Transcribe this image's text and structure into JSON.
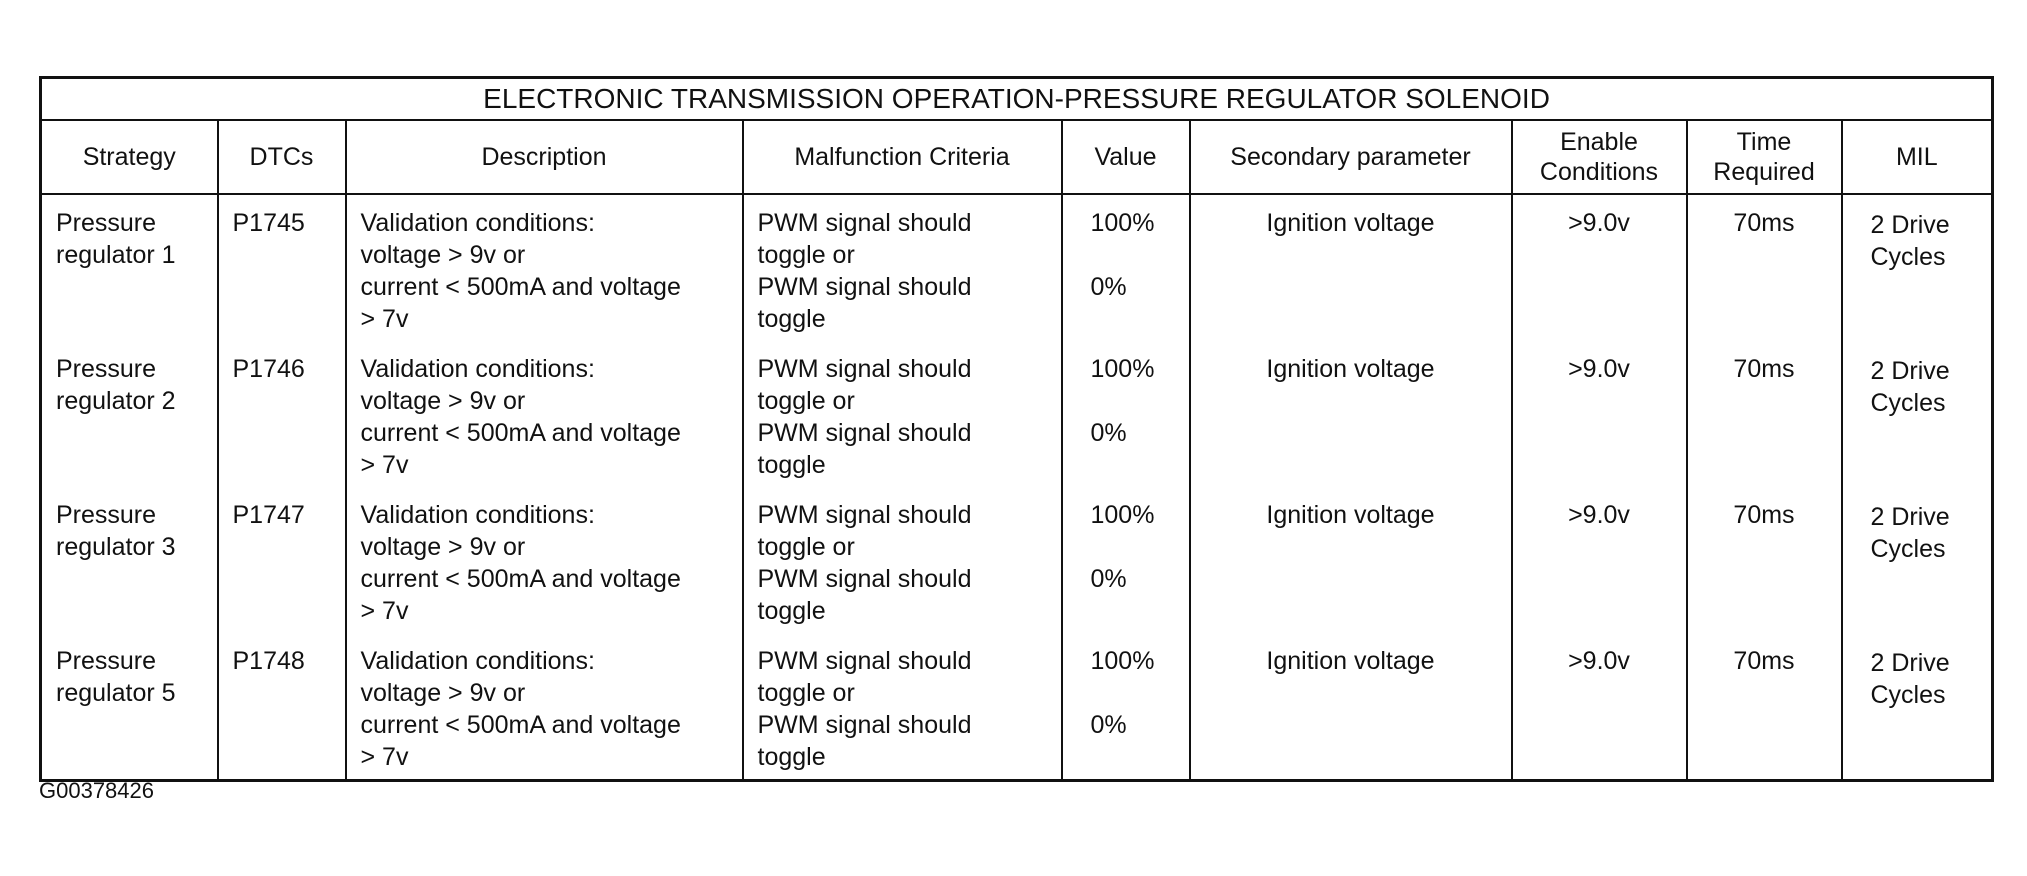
{
  "table": {
    "title": "ELECTRONIC TRANSMISSION OPERATION-PRESSURE REGULATOR SOLENOID",
    "headers": [
      "Strategy",
      "DTCs",
      "Description",
      "Malfunction Criteria",
      "Value",
      "Secondary parameter",
      "Enable\nConditions",
      "Time\nRequired",
      "MIL"
    ],
    "rows": [
      {
        "strategy": "Pressure\nregulator 1",
        "dtc": "P1745",
        "items": [
          {
            "description": "Validation conditions:\nvoltage > 9v or",
            "criteria": "PWM signal should\ntoggle or",
            "value": "100%"
          },
          {
            "description": "current < 500mA and voltage\n> 7v",
            "criteria": "PWM signal should\ntoggle",
            "value": "0%"
          }
        ],
        "secondary": "Ignition voltage",
        "enable": ">9.0v",
        "time": "70ms",
        "mil": "2 Drive\nCycles"
      },
      {
        "strategy": "Pressure\nregulator 2",
        "dtc": "P1746",
        "items": [
          {
            "description": "Validation conditions:\nvoltage > 9v or",
            "criteria": "PWM signal should\ntoggle or",
            "value": "100%"
          },
          {
            "description": "current < 500mA and voltage\n> 7v",
            "criteria": "PWM signal should\ntoggle",
            "value": "0%"
          }
        ],
        "secondary": "Ignition voltage",
        "enable": ">9.0v",
        "time": "70ms",
        "mil": "2 Drive\nCycles"
      },
      {
        "strategy": "Pressure\nregulator 3",
        "dtc": "P1747",
        "items": [
          {
            "description": "Validation conditions:\nvoltage > 9v or",
            "criteria": "PWM signal should\ntoggle or",
            "value": "100%"
          },
          {
            "description": "current < 500mA and voltage\n> 7v",
            "criteria": "PWM signal should\ntoggle",
            "value": "0%"
          }
        ],
        "secondary": "Ignition voltage",
        "enable": ">9.0v",
        "time": "70ms",
        "mil": "2 Drive\nCycles"
      },
      {
        "strategy": "Pressure\nregulator 5",
        "dtc": "P1748",
        "items": [
          {
            "description": "Validation conditions:\nvoltage > 9v or",
            "criteria": "PWM signal should\ntoggle or",
            "value": "100%"
          },
          {
            "description": "current < 500mA and voltage\n> 7v",
            "criteria": "PWM signal should\ntoggle",
            "value": "0%"
          }
        ],
        "secondary": "Ignition voltage",
        "enable": ">9.0v",
        "time": "70ms",
        "mil": "2 Drive\nCycles"
      }
    ]
  },
  "figure_id": "G00378426"
}
